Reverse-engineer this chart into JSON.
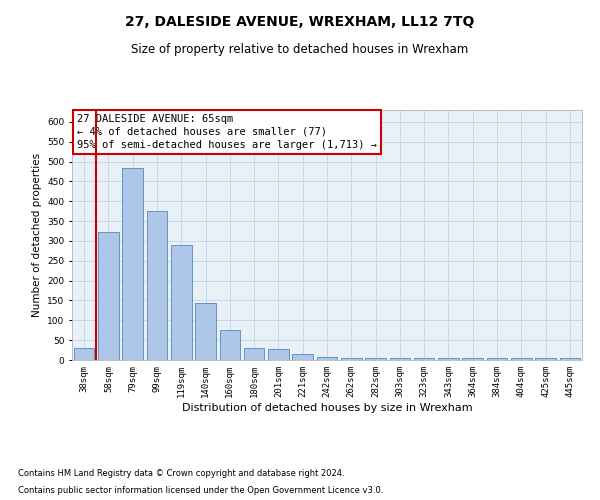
{
  "title": "27, DALESIDE AVENUE, WREXHAM, LL12 7TQ",
  "subtitle": "Size of property relative to detached houses in Wrexham",
  "xlabel": "Distribution of detached houses by size in Wrexham",
  "ylabel": "Number of detached properties",
  "categories": [
    "38sqm",
    "58sqm",
    "79sqm",
    "99sqm",
    "119sqm",
    "140sqm",
    "160sqm",
    "180sqm",
    "201sqm",
    "221sqm",
    "242sqm",
    "262sqm",
    "282sqm",
    "303sqm",
    "323sqm",
    "343sqm",
    "364sqm",
    "384sqm",
    "404sqm",
    "425sqm",
    "445sqm"
  ],
  "values": [
    30,
    323,
    483,
    375,
    290,
    144,
    76,
    30,
    27,
    14,
    8,
    5,
    5,
    5,
    4,
    5,
    5,
    5,
    5,
    5,
    4
  ],
  "bar_color": "#aec6e8",
  "bar_edge_color": "#5588bb",
  "vline_color": "#cc0000",
  "annotation_box_text": "27 DALESIDE AVENUE: 65sqm\n← 4% of detached houses are smaller (77)\n95% of semi-detached houses are larger (1,713) →",
  "annotation_box_color": "#cc0000",
  "annotation_box_bg": "#ffffff",
  "ylim": [
    0,
    630
  ],
  "yticks": [
    0,
    50,
    100,
    150,
    200,
    250,
    300,
    350,
    400,
    450,
    500,
    550,
    600
  ],
  "grid_color": "#c8d8e8",
  "footnote1": "Contains HM Land Registry data © Crown copyright and database right 2024.",
  "footnote2": "Contains public sector information licensed under the Open Government Licence v3.0.",
  "title_fontsize": 10,
  "subtitle_fontsize": 8.5,
  "xlabel_fontsize": 8,
  "ylabel_fontsize": 7.5,
  "tick_fontsize": 6.5,
  "annotation_fontsize": 7.5,
  "footnote_fontsize": 6
}
